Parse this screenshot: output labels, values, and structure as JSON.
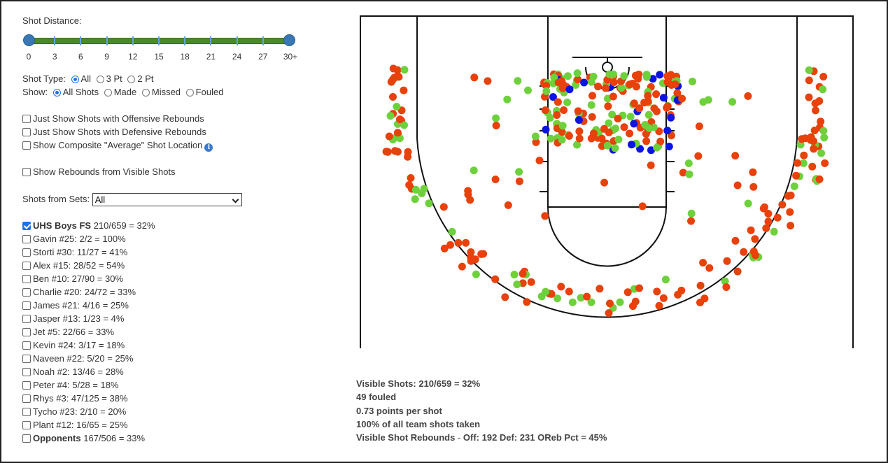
{
  "shot_distance": {
    "label": "Shot Distance:",
    "ticks": [
      "0",
      "3",
      "6",
      "9",
      "12",
      "15",
      "18",
      "21",
      "24",
      "27",
      "30+"
    ],
    "range_min": 0,
    "range_max": 30,
    "colors": {
      "track": "#4a8a2a",
      "handle": "#3a78b5"
    }
  },
  "shot_type": {
    "label": "Shot Type:",
    "options": [
      "All",
      "3 Pt",
      "2 Pt"
    ],
    "selected": "All"
  },
  "show": {
    "label": "Show:",
    "options": [
      "All Shots",
      "Made",
      "Missed",
      "Fouled"
    ],
    "selected": "All Shots"
  },
  "filters": {
    "offensive": "Just Show Shots with Offensive Rebounds",
    "defensive": "Just Show Shots with Defensive Rebounds",
    "composite": "Show Composite \"Average\" Shot Location",
    "rebounds": "Show Rebounds from Visible Shots"
  },
  "sets": {
    "label": "Shots from Sets:",
    "value": "All"
  },
  "team": {
    "name": "UHS Boys FS",
    "stat": "210/659 = 32%",
    "checked": true
  },
  "players": [
    "Gavin #25: 2/2 = 100%",
    "Storti #30: 11/27 = 41%",
    "Alex #15: 28/52 = 54%",
    "Ben #10: 27/90 = 30%",
    "Charlie #20: 24/72 = 33%",
    "James #21: 4/16 = 25%",
    "Jasper #13: 1/23 = 4%",
    "Jet #5: 22/66 = 33%",
    "Kevin #24: 3/17 = 18%",
    "Naveen #22: 5/20 = 25%",
    "Noah #2: 13/46 = 28%",
    "Peter #4: 5/28 = 18%",
    "Rhys #3: 47/125 = 38%",
    "Tycho #23: 2/10 = 20%",
    "Plant #12: 16/65 = 25%"
  ],
  "opponents": {
    "name": "Opponents",
    "stat": "167/506 = 33%"
  },
  "stats": {
    "visible": "Visible Shots: 210/659 = 32%",
    "fouled": "49 fouled",
    "pps": "0.73 points per shot",
    "share": "100% of all team shots taken",
    "rebounds_prefix": "Visible Shot Rebounds",
    "rebounds_sep": " - ",
    "rebounds_values": "Off: 192 Def: 231  OReb Pct = 45%"
  },
  "legend_colors": {
    "missed": "#e8410a",
    "made": "#6ed13c",
    "fouled": "#0a14e0"
  }
}
